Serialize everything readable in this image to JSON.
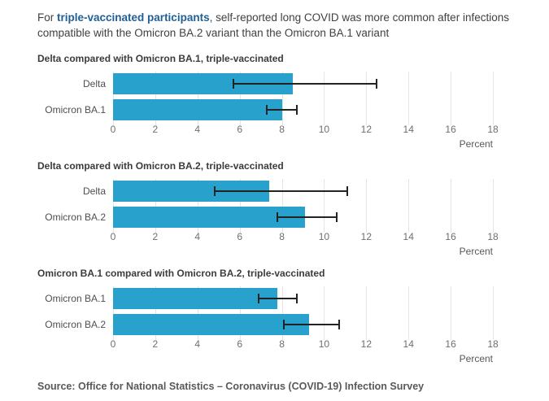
{
  "title": {
    "prefix": "For ",
    "highlight": "triple-vaccinated participants",
    "suffix": ", self-reported long COVID was more common after infections compatible with the Omicron BA.2 variant than the Omicron BA.1 variant"
  },
  "axis": {
    "label": "Percent",
    "min": 0,
    "max": 18,
    "ticks": [
      0,
      2,
      4,
      6,
      8,
      10,
      12,
      14,
      16,
      18
    ]
  },
  "chart_data": [
    {
      "type": "bar",
      "orientation": "horizontal",
      "id": "delta-vs-omicron-ba1",
      "title": "Delta compared with Omicron BA.1, triple-vaccinated",
      "categories": [
        "Delta",
        "Omicron BA.1"
      ],
      "values": [
        8.5,
        8.0
      ],
      "ci_low": [
        5.7,
        7.3
      ],
      "ci_high": [
        12.5,
        8.7
      ],
      "xlabel": "Percent",
      "xlim": [
        0,
        18
      ],
      "grid": true
    },
    {
      "type": "bar",
      "orientation": "horizontal",
      "id": "delta-vs-omicron-ba2",
      "title": "Delta compared with Omicron BA.2, triple-vaccinated",
      "categories": [
        "Delta",
        "Omicron BA.2"
      ],
      "values": [
        7.4,
        9.1
      ],
      "ci_low": [
        4.8,
        7.8
      ],
      "ci_high": [
        11.1,
        10.6
      ],
      "xlabel": "Percent",
      "xlim": [
        0,
        18
      ],
      "grid": true
    },
    {
      "type": "bar",
      "orientation": "horizontal",
      "id": "omicron-ba1-vs-omicron-ba2",
      "title": "Omicron BA.1 compared with Omicron BA.2, triple-vaccinated",
      "categories": [
        "Omicron BA.1",
        "Omicron BA.2"
      ],
      "values": [
        7.8,
        9.3
      ],
      "ci_low": [
        6.9,
        8.1
      ],
      "ci_high": [
        8.7,
        10.7
      ],
      "xlabel": "Percent",
      "xlim": [
        0,
        18
      ],
      "grid": true
    }
  ],
  "source": "Source: Office for National Statistics – Coronavirus (COVID-19) Infection Survey",
  "colors": {
    "bar": "#28a1cd",
    "error": "#232323",
    "grid": "#e4e4e4",
    "title_highlight": "#206095",
    "body_text": "#414042",
    "muted_text": "#6e6e70"
  }
}
